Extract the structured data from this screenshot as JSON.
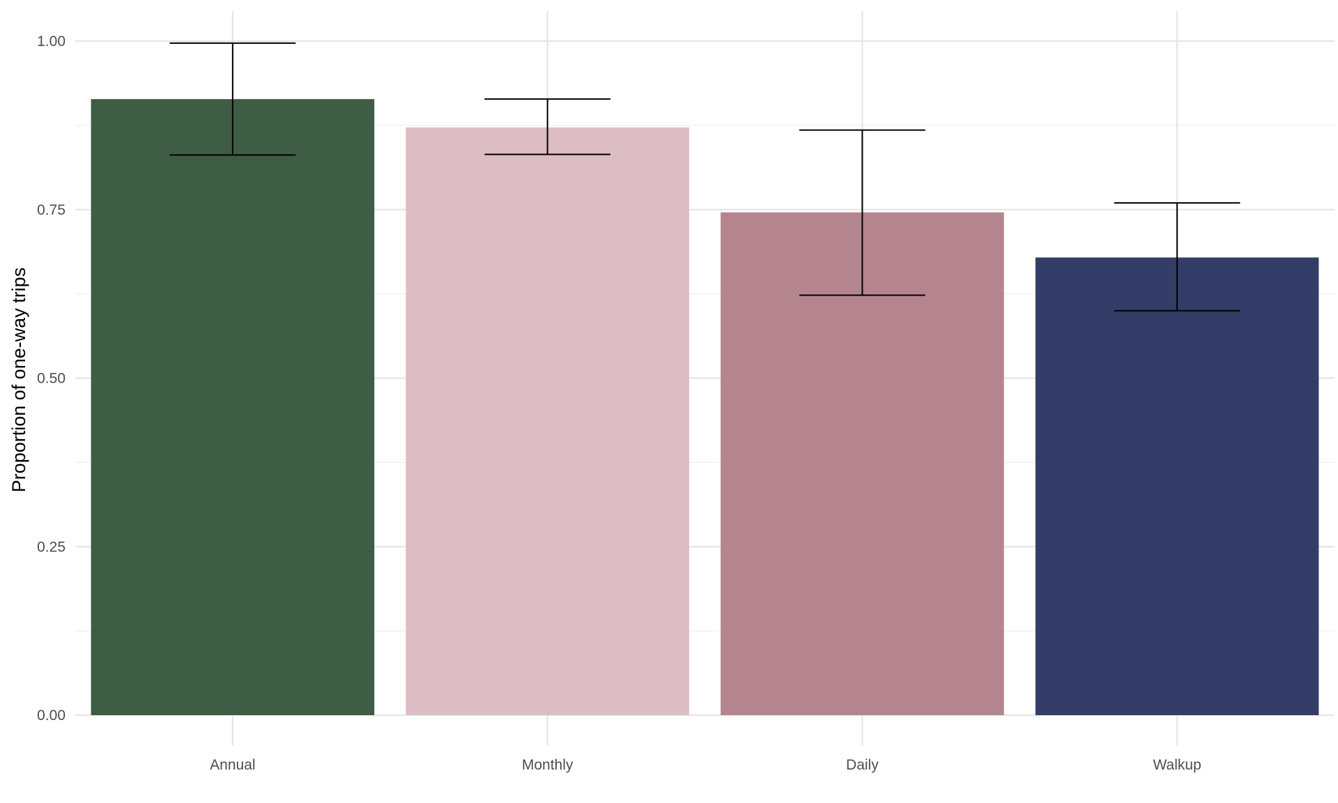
{
  "chart_data": {
    "type": "bar",
    "title": "",
    "xlabel": "",
    "ylabel": "Proportion of one-way trips",
    "categories": [
      "Annual",
      "Monthly",
      "Daily",
      "Walkup"
    ],
    "values": [
      0.914,
      0.872,
      0.746,
      0.679
    ],
    "error_bars": [
      {
        "low": 0.831,
        "high": 0.997
      },
      {
        "low": 0.832,
        "high": 0.914
      },
      {
        "low": 0.623,
        "high": 0.868
      },
      {
        "low": 0.6,
        "high": 0.76
      }
    ],
    "colors": [
      "#3f5c45",
      "#dcbdc3",
      "#b5858f",
      "#333d67"
    ],
    "ylim": [
      -0.045,
      1.045
    ],
    "yticks": [
      0.0,
      0.25,
      0.5,
      0.75,
      1.0
    ],
    "ytick_labels": [
      "0.00",
      "0.25",
      "0.50",
      "0.75",
      "1.00"
    ],
    "minor_yticks": [
      0.125,
      0.375,
      0.625,
      0.875
    ],
    "grid": true,
    "legend": "none"
  }
}
